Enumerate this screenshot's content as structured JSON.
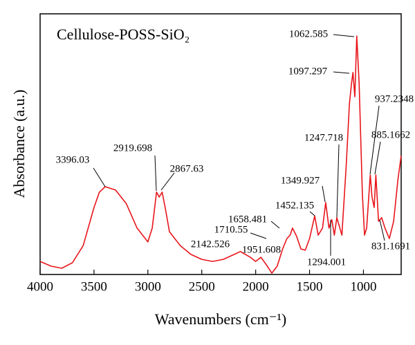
{
  "chart_data": {
    "type": "line",
    "title": "Cellulose-POSS-SiO₂",
    "x_label": "Wavenumbers (cm⁻¹)",
    "y_label": "Absorbance (a.u.)",
    "x": [
      4000,
      3900,
      3800,
      3700,
      3600,
      3500,
      3450,
      3396,
      3300,
      3200,
      3100,
      3000,
      2960,
      2920,
      2895,
      2868,
      2840,
      2800,
      2700,
      2600,
      2500,
      2400,
      2300,
      2200,
      2142,
      2050,
      2000,
      1951,
      1900,
      1850,
      1800,
      1750,
      1710,
      1680,
      1658,
      1620,
      1580,
      1540,
      1500,
      1452,
      1420,
      1380,
      1350,
      1320,
      1294,
      1270,
      1247,
      1200,
      1160,
      1130,
      1110,
      1097,
      1080,
      1062,
      1040,
      1010,
      990,
      970,
      937,
      920,
      900,
      885,
      860,
      831,
      800,
      760,
      720,
      680,
      650
    ],
    "values": [
      0.05,
      0.032,
      0.024,
      0.045,
      0.111,
      0.257,
      0.316,
      0.337,
      0.324,
      0.271,
      0.178,
      0.125,
      0.178,
      0.316,
      0.297,
      0.316,
      0.257,
      0.164,
      0.111,
      0.077,
      0.058,
      0.05,
      0.058,
      0.077,
      0.088,
      0.066,
      0.05,
      0.066,
      0.037,
      0.005,
      0.032,
      0.098,
      0.138,
      0.151,
      0.178,
      0.146,
      0.098,
      0.093,
      0.138,
      0.225,
      0.151,
      0.178,
      0.276,
      0.178,
      0.21,
      0.151,
      0.218,
      0.151,
      0.416,
      0.655,
      0.735,
      0.775,
      0.682,
      0.915,
      0.735,
      0.31,
      0.151,
      0.178,
      0.382,
      0.297,
      0.257,
      0.382,
      0.204,
      0.218,
      0.178,
      0.138,
      0.204,
      0.363,
      0.456
    ],
    "color": "#e8141a",
    "xlim": [
      4000,
      650
    ],
    "ylim": [
      0,
      1
    ],
    "xticks": [
      4000,
      3500,
      3000,
      2500,
      2000,
      1500,
      1000
    ],
    "annotations": [
      "3396.03",
      "2919.698",
      "2867.63",
      "2142.526",
      "1951.608",
      "1710.55",
      "1658.481",
      "1452.135",
      "1349.927",
      "1247.718",
      "1294.001",
      "1097.297",
      "1062.585",
      "937.2348",
      "885.1662",
      "831.1691"
    ]
  }
}
